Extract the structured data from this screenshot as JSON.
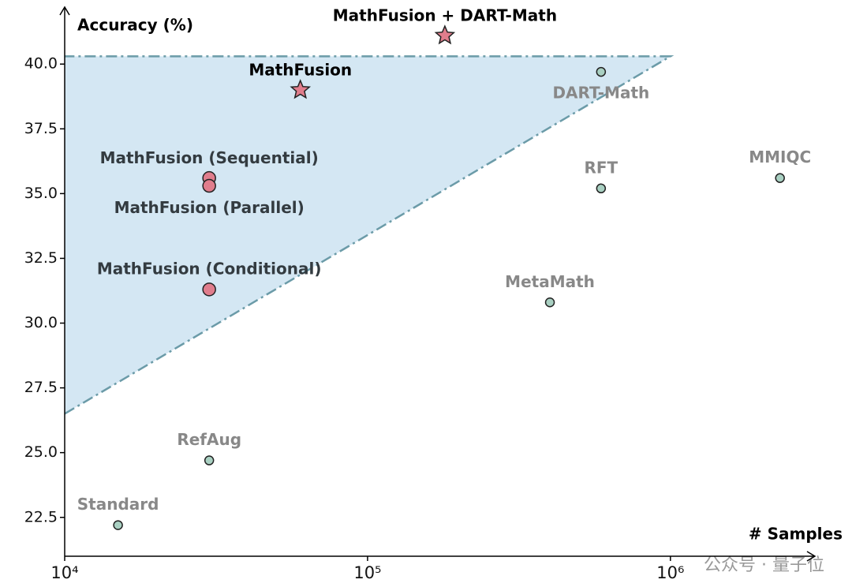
{
  "chart_data": {
    "type": "scatter",
    "ylabel": "Accuracy (%)",
    "xlabel": "# Samples",
    "log_x": true,
    "xlim": [
      10000,
      3000000
    ],
    "ylim": [
      21,
      42.2
    ],
    "xticks": [
      {
        "value": 10000,
        "label": "10⁴"
      },
      {
        "value": 100000,
        "label": "10⁵"
      },
      {
        "value": 1000000,
        "label": "10⁶"
      }
    ],
    "yticks": [
      22.5,
      {
        "value": 25,
        "label": "25.0"
      },
      27.5,
      {
        "value": 30,
        "label": "30.0"
      },
      32.5,
      {
        "value": 35,
        "label": "35.0"
      },
      37.5,
      {
        "value": 40,
        "label": "40.0"
      }
    ],
    "frontier": {
      "x": [
        10000,
        1000000,
        10000
      ],
      "y": [
        26.5,
        40.3,
        40.3
      ],
      "color": "#6b9ba8",
      "fill": "#d4e7f3"
    },
    "series": [
      {
        "marker": "circle",
        "color": "#a9d0c2",
        "label_color": "#888888",
        "labels": [
          "Standard",
          "RefAug",
          "MetaMath",
          "RFT",
          "DART-Math",
          "MMIQC"
        ],
        "x": [
          15000,
          30000,
          400000,
          590000,
          590000,
          2300000
        ],
        "values": [
          22.2,
          24.7,
          30.8,
          35.2,
          39.7,
          35.6
        ]
      },
      {
        "marker": "circle",
        "color": "#e07d8c",
        "label_color": "#333b40",
        "labels": [
          "MathFusion (Sequential)",
          "MathFusion (Parallel)",
          "MathFusion (Conditional)"
        ],
        "x": [
          30000,
          30000,
          30000
        ],
        "values": [
          35.6,
          35.3,
          31.3
        ]
      },
      {
        "marker": "star",
        "color": "#e07d8c",
        "label_color": "#000000",
        "labels": [
          "MathFusion",
          "MathFusion + DART-Math"
        ],
        "x": [
          60000,
          180000
        ],
        "values": [
          39.0,
          41.1
        ]
      }
    ],
    "watermark": "公众号 · 量子位"
  }
}
